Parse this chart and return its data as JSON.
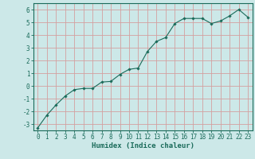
{
  "x": [
    0,
    1,
    2,
    3,
    4,
    5,
    6,
    7,
    8,
    9,
    10,
    11,
    12,
    13,
    14,
    15,
    16,
    17,
    18,
    19,
    20,
    21,
    22,
    23
  ],
  "y": [
    -3.3,
    -2.3,
    -1.5,
    -0.8,
    -0.3,
    -0.2,
    -0.2,
    0.3,
    0.35,
    0.9,
    1.3,
    1.4,
    2.7,
    3.5,
    3.8,
    4.9,
    5.3,
    5.3,
    5.3,
    4.9,
    5.1,
    5.5,
    6.0,
    5.4
  ],
  "xlim": [
    -0.5,
    23.5
  ],
  "ylim": [
    -3.5,
    6.5
  ],
  "yticks": [
    -3,
    -2,
    -1,
    0,
    1,
    2,
    3,
    4,
    5,
    6
  ],
  "xticks": [
    0,
    1,
    2,
    3,
    4,
    5,
    6,
    7,
    8,
    9,
    10,
    11,
    12,
    13,
    14,
    15,
    16,
    17,
    18,
    19,
    20,
    21,
    22,
    23
  ],
  "xlabel": "Humidex (Indice chaleur)",
  "line_color": "#1a6b5a",
  "marker": "D",
  "marker_size": 1.8,
  "bg_color": "#cce8e8",
  "grid_color": "#d4a0a0",
  "axis_color": "#1a6b5a",
  "label_color": "#1a6b5a",
  "tick_color": "#1a6b5a",
  "xlabel_fontsize": 6.5,
  "tick_fontsize": 5.5
}
